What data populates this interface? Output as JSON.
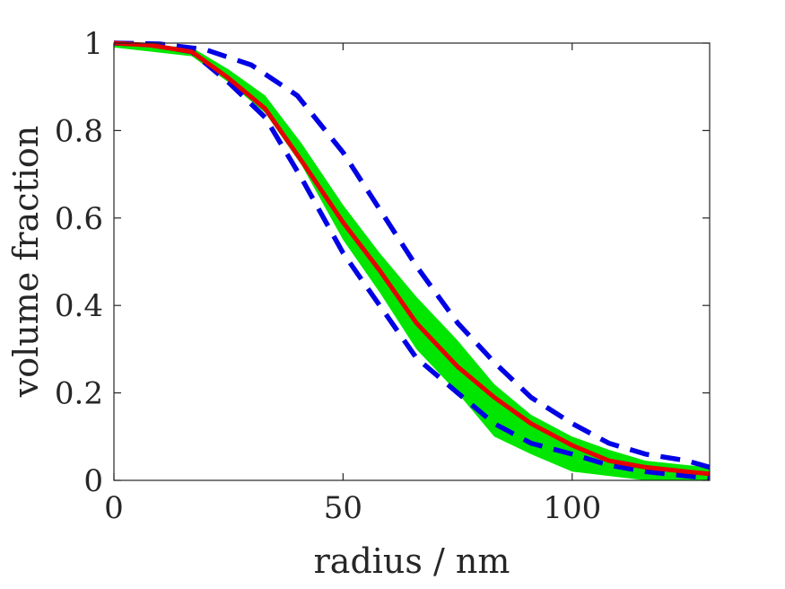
{
  "chart_data": {
    "type": "line",
    "title": "",
    "xlabel": "radius / nm",
    "ylabel": "volume fraction",
    "xlim": [
      0,
      130
    ],
    "ylim": [
      0,
      1
    ],
    "grid": false,
    "x_ticks": [
      {
        "value": 0,
        "label": "0"
      },
      {
        "value": 50,
        "label": "50"
      },
      {
        "value": 100,
        "label": "100"
      }
    ],
    "y_ticks": [
      {
        "value": 0,
        "label": "0"
      },
      {
        "value": 0.2,
        "label": "0.2"
      },
      {
        "value": 0.4,
        "label": "0.4"
      },
      {
        "value": 0.6,
        "label": "0.6"
      },
      {
        "value": 0.8,
        "label": "0.8"
      },
      {
        "value": 1,
        "label": "1"
      }
    ],
    "band": {
      "name": "green-range",
      "color": "#00e600",
      "x": [
        0,
        17,
        25,
        33,
        41,
        50,
        58,
        66,
        75,
        83,
        91,
        100,
        108,
        116,
        125,
        130
      ],
      "upper": [
        1.0,
        0.99,
        0.94,
        0.88,
        0.77,
        0.63,
        0.52,
        0.42,
        0.32,
        0.22,
        0.15,
        0.1,
        0.07,
        0.045,
        0.035,
        0.03
      ],
      "lower": [
        0.99,
        0.97,
        0.91,
        0.84,
        0.72,
        0.55,
        0.43,
        0.3,
        0.2,
        0.1,
        0.06,
        0.02,
        0.01,
        0.0,
        0.0,
        0.0
      ]
    },
    "series": [
      {
        "name": "red-mean",
        "color": "#e60000",
        "dash": "solid",
        "x": [
          0,
          8,
          17,
          25,
          33,
          41,
          50,
          58,
          66,
          75,
          83,
          91,
          100,
          108,
          116,
          125,
          130
        ],
        "values": [
          1.0,
          0.995,
          0.98,
          0.92,
          0.85,
          0.73,
          0.59,
          0.48,
          0.36,
          0.26,
          0.19,
          0.13,
          0.08,
          0.045,
          0.03,
          0.02,
          0.015
        ]
      },
      {
        "name": "blue-dashed-upper",
        "color": "#0000e6",
        "dash": "dashed",
        "x": [
          0,
          10,
          20,
          30,
          40,
          50,
          58,
          66,
          75,
          83,
          91,
          100,
          108,
          116,
          125,
          130
        ],
        "values": [
          1.0,
          0.998,
          0.985,
          0.95,
          0.88,
          0.75,
          0.62,
          0.49,
          0.36,
          0.27,
          0.19,
          0.13,
          0.085,
          0.06,
          0.045,
          0.03
        ]
      },
      {
        "name": "blue-dashed-lower",
        "color": "#0000e6",
        "dash": "dashed",
        "x": [
          0,
          8,
          17,
          25,
          33,
          41,
          50,
          58,
          66,
          75,
          83,
          91,
          100,
          108,
          116,
          125,
          130
        ],
        "values": [
          1.0,
          0.997,
          0.98,
          0.91,
          0.83,
          0.69,
          0.52,
          0.4,
          0.28,
          0.2,
          0.13,
          0.085,
          0.06,
          0.035,
          0.02,
          0.01,
          0.005
        ]
      }
    ]
  }
}
